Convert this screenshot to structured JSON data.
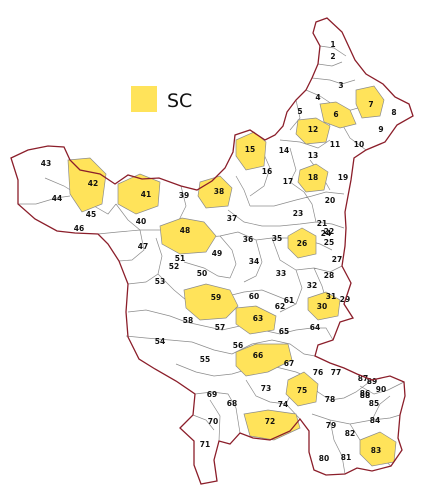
{
  "legend": {
    "label": "SC",
    "color": "#FFE35A"
  },
  "colors": {
    "reserved_fill": "#FFE35A",
    "unreserved_fill": "#FFFFFF",
    "state_border": "#8B1E2A",
    "constituency_border": "#8C8C8C"
  },
  "map": {
    "constituencies": [
      {
        "label": "1",
        "reserved": false
      },
      {
        "label": "2",
        "reserved": false
      },
      {
        "label": "3",
        "reserved": false
      },
      {
        "label": "4",
        "reserved": false
      },
      {
        "label": "5",
        "reserved": false
      },
      {
        "label": "6",
        "reserved": true
      },
      {
        "label": "7",
        "reserved": true
      },
      {
        "label": "8",
        "reserved": false
      },
      {
        "label": "9",
        "reserved": false
      },
      {
        "label": "10",
        "reserved": false
      },
      {
        "label": "11",
        "reserved": false
      },
      {
        "label": "12",
        "reserved": true
      },
      {
        "label": "13",
        "reserved": false
      },
      {
        "label": "14",
        "reserved": false
      },
      {
        "label": "15",
        "reserved": true
      },
      {
        "label": "16",
        "reserved": false
      },
      {
        "label": "17",
        "reserved": false
      },
      {
        "label": "18",
        "reserved": false
      },
      {
        "label": "19",
        "reserved": true
      },
      {
        "label": "20",
        "reserved": false
      },
      {
        "label": "21",
        "reserved": false
      },
      {
        "label": "22",
        "reserved": false
      },
      {
        "label": "23",
        "reserved": false
      },
      {
        "label": "24",
        "reserved": false
      },
      {
        "label": "25",
        "reserved": false
      },
      {
        "label": "26",
        "reserved": true
      },
      {
        "label": "27",
        "reserved": false
      },
      {
        "label": "28",
        "reserved": false
      },
      {
        "label": "29",
        "reserved": false
      },
      {
        "label": "30",
        "reserved": true
      },
      {
        "label": "31",
        "reserved": false
      },
      {
        "label": "32",
        "reserved": false
      },
      {
        "label": "33",
        "reserved": false
      },
      {
        "label": "34",
        "reserved": false
      },
      {
        "label": "35",
        "reserved": false
      },
      {
        "label": "36",
        "reserved": false
      },
      {
        "label": "37",
        "reserved": false
      },
      {
        "label": "38",
        "reserved": true
      },
      {
        "label": "39",
        "reserved": false
      },
      {
        "label": "40",
        "reserved": false
      },
      {
        "label": "41",
        "reserved": true
      },
      {
        "label": "42",
        "reserved": true
      },
      {
        "label": "43",
        "reserved": false
      },
      {
        "label": "44",
        "reserved": false
      },
      {
        "label": "45",
        "reserved": false
      },
      {
        "label": "46",
        "reserved": false
      },
      {
        "label": "47",
        "reserved": false
      },
      {
        "label": "48",
        "reserved": true
      },
      {
        "label": "49",
        "reserved": false
      },
      {
        "label": "50",
        "reserved": false
      },
      {
        "label": "51",
        "reserved": false
      },
      {
        "label": "52",
        "reserved": false
      },
      {
        "label": "53",
        "reserved": false
      },
      {
        "label": "54",
        "reserved": false
      },
      {
        "label": "55",
        "reserved": false
      },
      {
        "label": "56",
        "reserved": false
      },
      {
        "label": "57",
        "reserved": false
      },
      {
        "label": "58",
        "reserved": false
      },
      {
        "label": "59",
        "reserved": true
      },
      {
        "label": "60",
        "reserved": false
      },
      {
        "label": "61",
        "reserved": false
      },
      {
        "label": "62",
        "reserved": false
      },
      {
        "label": "63",
        "reserved": true
      },
      {
        "label": "64",
        "reserved": false
      },
      {
        "label": "65",
        "reserved": false
      },
      {
        "label": "66",
        "reserved": true
      },
      {
        "label": "67",
        "reserved": false
      },
      {
        "label": "68",
        "reserved": false
      },
      {
        "label": "69",
        "reserved": false
      },
      {
        "label": "70",
        "reserved": false
      },
      {
        "label": "71",
        "reserved": false
      },
      {
        "label": "72",
        "reserved": true
      },
      {
        "label": "73",
        "reserved": false
      },
      {
        "label": "74",
        "reserved": false
      },
      {
        "label": "75",
        "reserved": true
      },
      {
        "label": "76",
        "reserved": false
      },
      {
        "label": "77",
        "reserved": false
      },
      {
        "label": "78",
        "reserved": false
      },
      {
        "label": "79",
        "reserved": false
      },
      {
        "label": "80",
        "reserved": false
      },
      {
        "label": "81",
        "reserved": false
      },
      {
        "label": "82",
        "reserved": false
      },
      {
        "label": "83",
        "reserved": true
      },
      {
        "label": "84",
        "reserved": false
      },
      {
        "label": "85",
        "reserved": false
      },
      {
        "label": "86",
        "reserved": false
      },
      {
        "label": "87",
        "reserved": false
      },
      {
        "label": "88",
        "reserved": false
      },
      {
        "label": "89",
        "reserved": false
      },
      {
        "label": "90",
        "reserved": false
      }
    ]
  }
}
